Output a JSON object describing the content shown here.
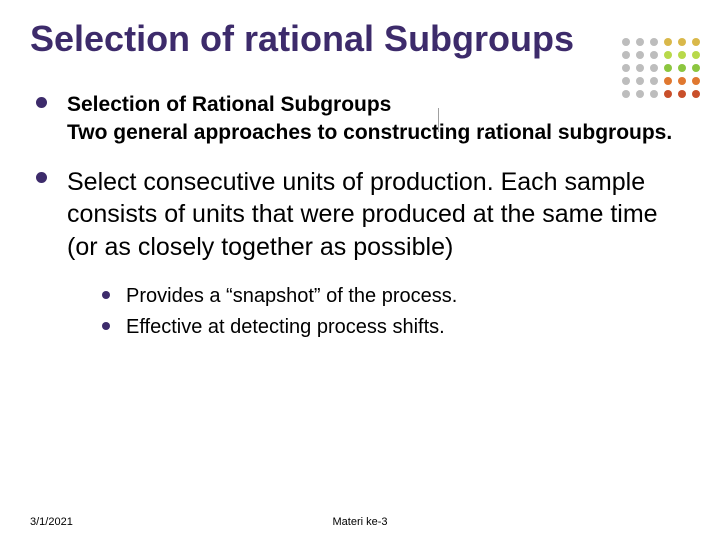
{
  "title": "Selection of rational Subgroups",
  "bullets": [
    {
      "heading": "Selection of Rational Subgroups",
      "body": "Two general approaches to constructing rational subgroups."
    },
    {
      "body_large": "Select consecutive units of production.  Each sample consists of units that were produced at the same time (or as closely together as possible)",
      "subs": [
        "Provides a “snapshot” of the process.",
        "Effective at detecting process shifts."
      ]
    }
  ],
  "footer": {
    "date": "3/1/2021",
    "center": "Materi ke-3"
  },
  "theme": {
    "title_color": "#3d2b6b",
    "bullet_color": "#3d2b6b",
    "text_color": "#000000",
    "background": "#ffffff",
    "title_fontsize": 36,
    "body_bold_fontsize": 21,
    "body_large_fontsize": 25,
    "sub_fontsize": 20,
    "footer_fontsize": 11
  },
  "decor_dots": {
    "rows": [
      [
        "#bdbdbd",
        "#bdbdbd",
        "#bdbdbd",
        "#d9b84a",
        "#d9b84a",
        "#d9b84a"
      ],
      [
        "#bdbdbd",
        "#bdbdbd",
        "#bdbdbd",
        "#b8d94a",
        "#b8d94a",
        "#b8d94a"
      ],
      [
        "#bdbdbd",
        "#bdbdbd",
        "#bdbdbd",
        "#8cc63f",
        "#8cc63f",
        "#8cc63f"
      ],
      [
        "#bdbdbd",
        "#bdbdbd",
        "#bdbdbd",
        "#e07830",
        "#e07830",
        "#e07830"
      ],
      [
        "#bdbdbd",
        "#bdbdbd",
        "#bdbdbd",
        "#c94f2a",
        "#c94f2a",
        "#c94f2a"
      ]
    ],
    "dot_size": 8,
    "gap": 6
  }
}
